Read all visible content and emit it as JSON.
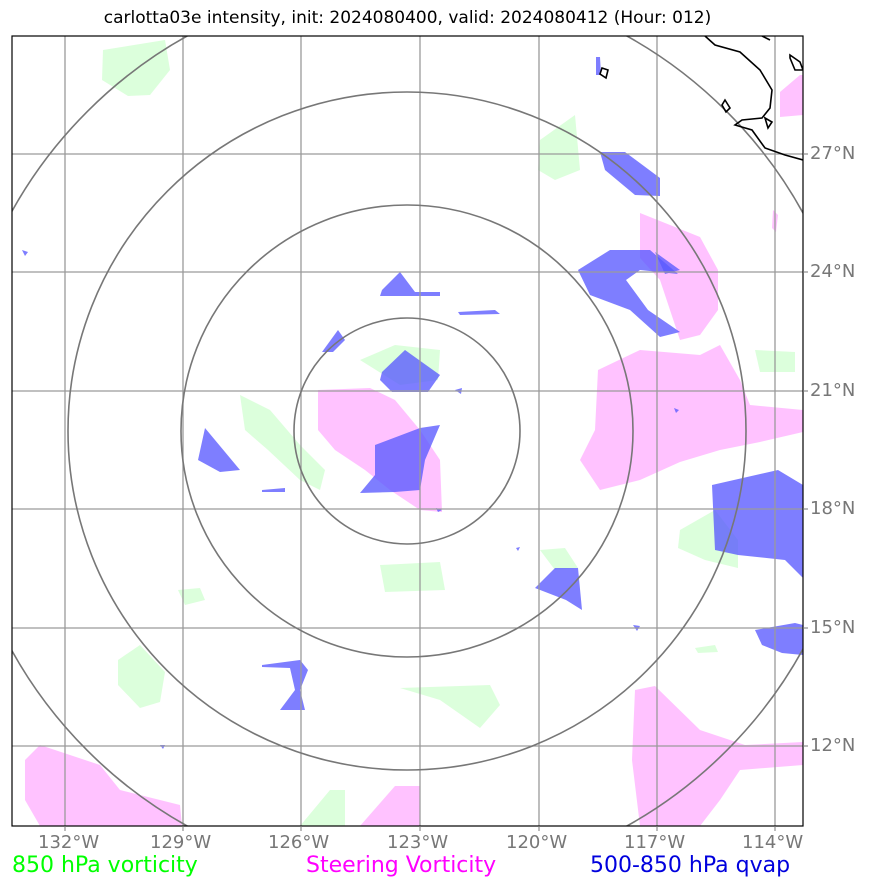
{
  "title": "carlotta03e intensity, init: 2024080400, valid: 2024080412 (Hour: 012)",
  "lon_labels": [
    "132°W",
    "129°W",
    "126°W",
    "123°W",
    "120°W",
    "117°W",
    "114°W"
  ],
  "lat_labels": [
    "27°N",
    "24°N",
    "21°N",
    "18°N",
    "15°N",
    "12°N"
  ],
  "legend": [
    {
      "label": "850 hPa vorticity",
      "color": "#00ff00"
    },
    {
      "label": "Steering Vorticity",
      "color": "#ff00ff"
    },
    {
      "label": "500-850 hPa qvap",
      "color": "#0000dd"
    }
  ],
  "fill_colors": {
    "vorticity_850": "#d8ffd8",
    "steering": "#ffbbff",
    "qvap": "#7070ff"
  }
}
